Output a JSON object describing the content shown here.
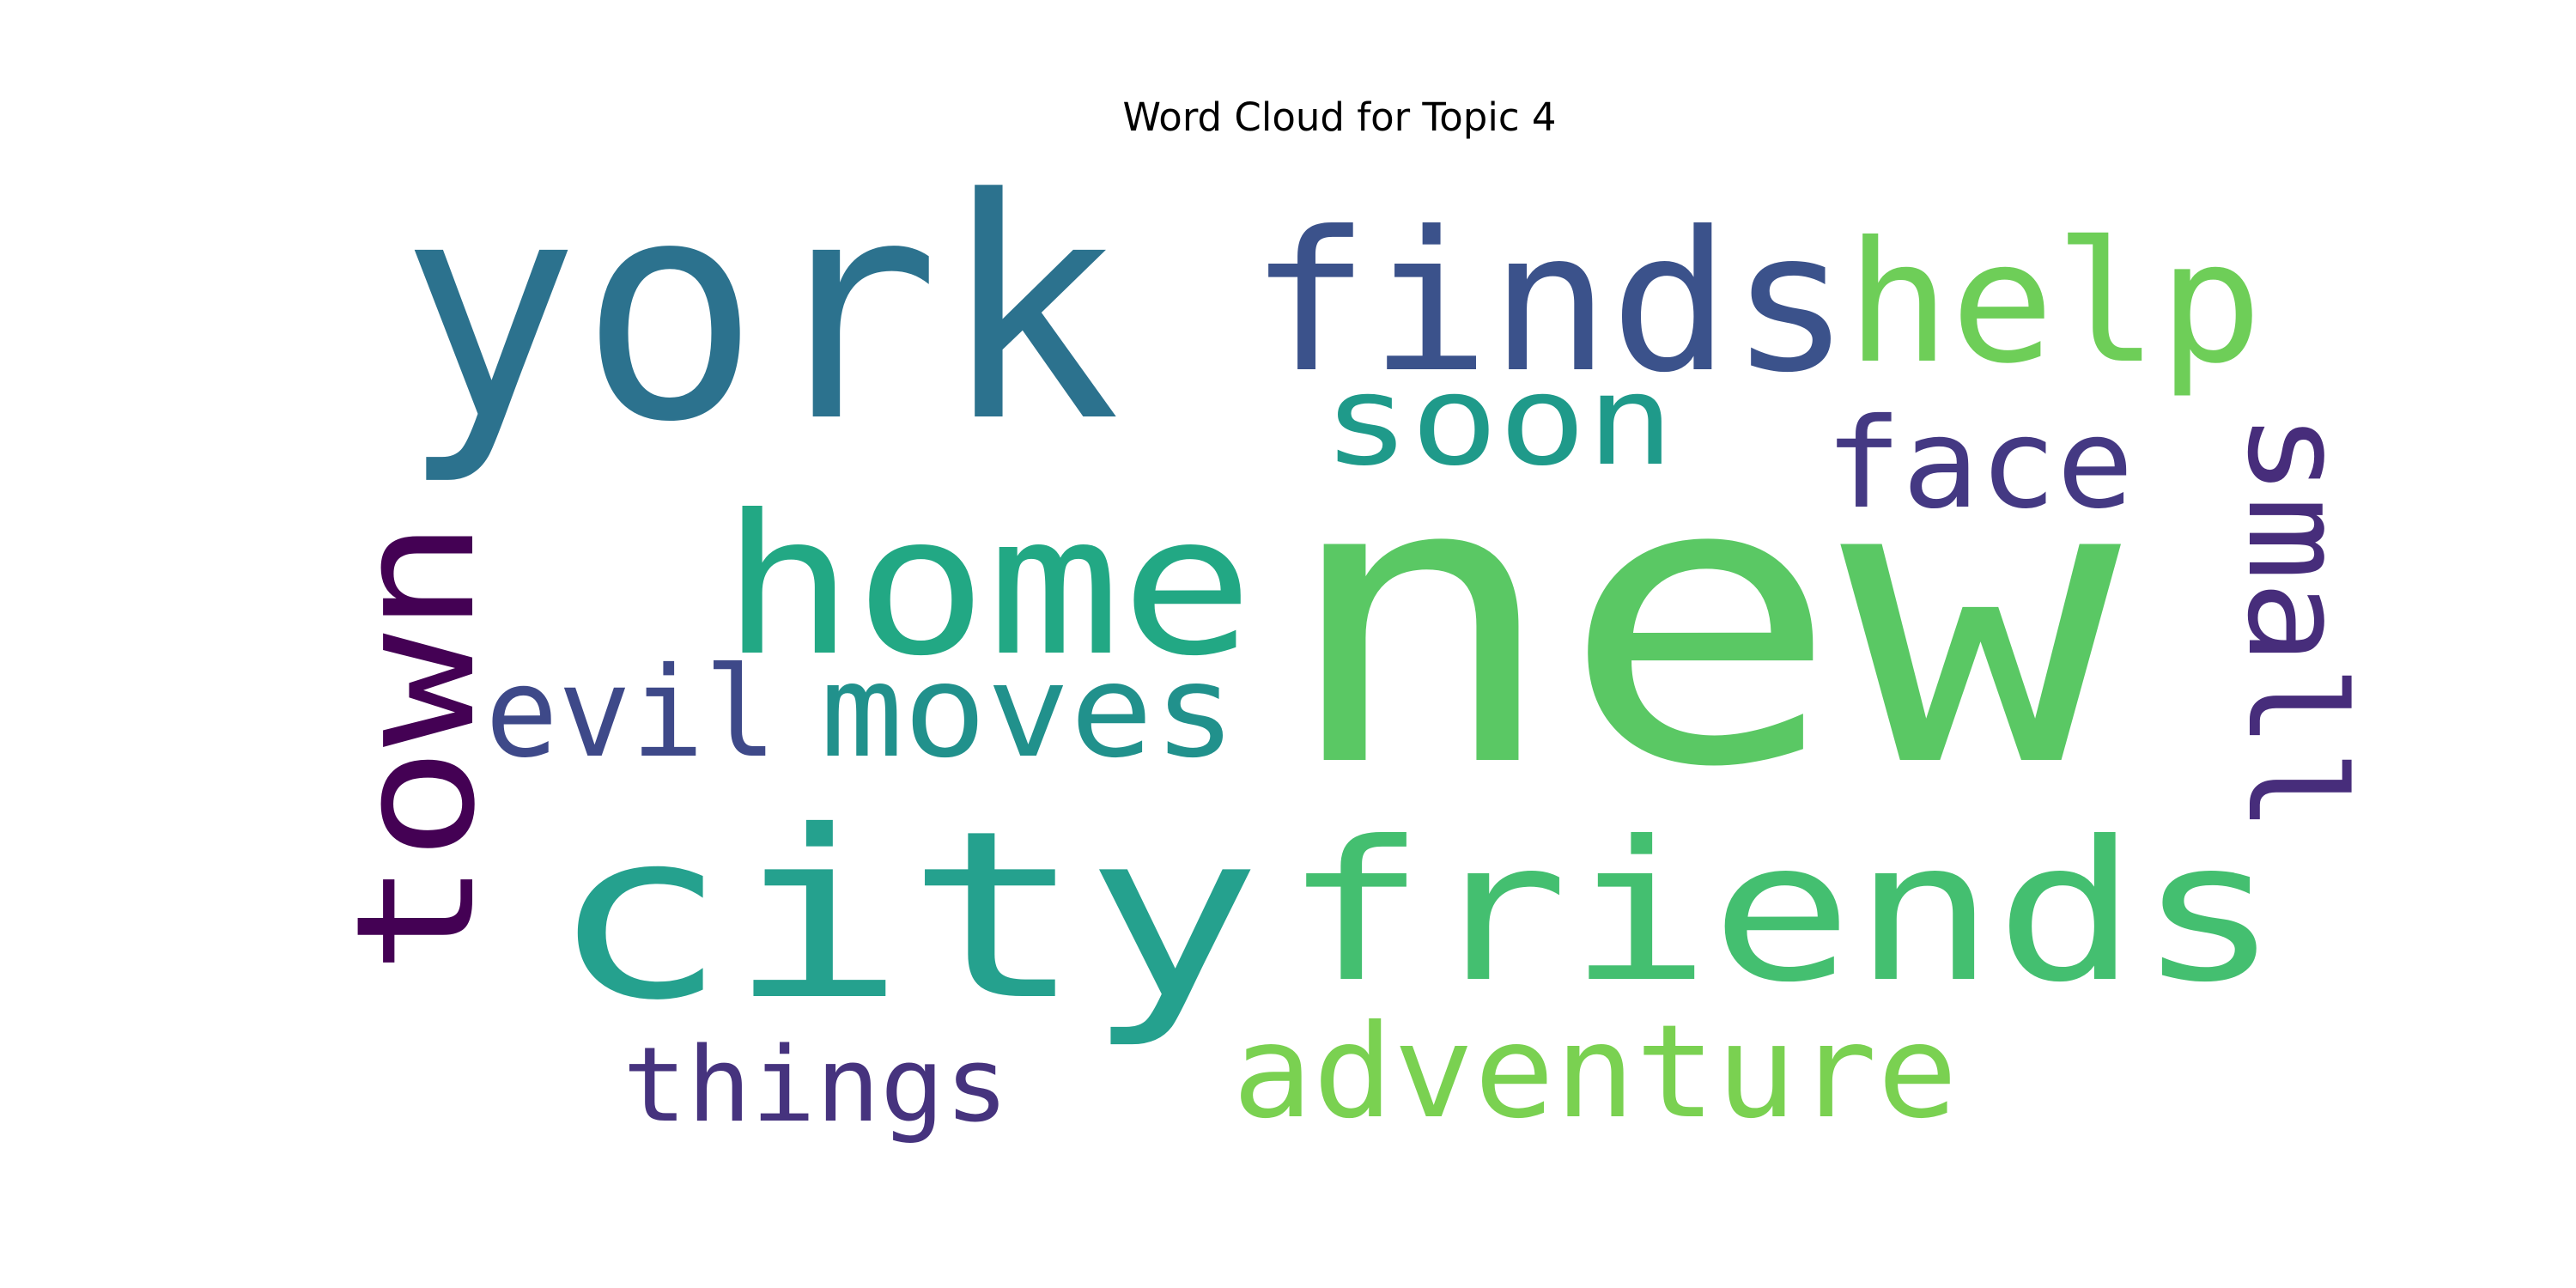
{
  "chart_data": {
    "type": "wordcloud",
    "title": "Word Cloud for Topic 4",
    "words": [
      {
        "text": "new",
        "color": "#5ac864"
      },
      {
        "text": "york",
        "color": "#2c728e"
      },
      {
        "text": "city",
        "color": "#25a18e"
      },
      {
        "text": "friends",
        "color": "#44bf70"
      },
      {
        "text": "finds",
        "color": "#3b528b"
      },
      {
        "text": "home",
        "color": "#22a884"
      },
      {
        "text": "town",
        "color": "#440154"
      },
      {
        "text": "help",
        "color": "#6ece58"
      },
      {
        "text": "adventure",
        "color": "#7ad151"
      },
      {
        "text": "small",
        "color": "#472d7b"
      },
      {
        "text": "moves",
        "color": "#21918c"
      },
      {
        "text": "evil",
        "color": "#3e4989"
      },
      {
        "text": "face",
        "color": "#443983"
      },
      {
        "text": "soon",
        "color": "#1f9a8a"
      },
      {
        "text": "things",
        "color": "#46337e"
      }
    ],
    "background": "#ffffff",
    "axes": "off"
  }
}
